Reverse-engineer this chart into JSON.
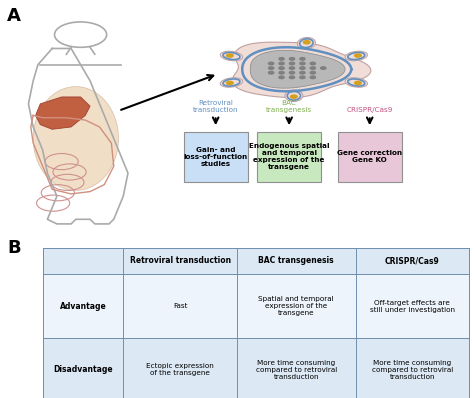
{
  "panel_a_label": "A",
  "panel_b_label": "B",
  "bg_color": "#f5f5f0",
  "table_header_bg": "#dce9f5",
  "table_row1_bg": "#eef4fb",
  "table_row2_bg": "#dce9f5",
  "table_border": "#7090b0",
  "box1_bg": "#c8dff5",
  "box2_bg": "#c8e8c0",
  "box3_bg": "#e8c8d8",
  "box1_text": "Gain- and\nloss-of-function\nstudies",
  "box2_text": "Endogenous spatial\nand temporal\nexpression of the\ntransgene",
  "box3_text": "Gene correction\nGene KO",
  "label1": "Retroviral\ntransduction",
  "label2": "BAC\ntransgenesis",
  "label3": "CRISPR/Cas9",
  "label1_color": "#6090c0",
  "label2_color": "#80b050",
  "label3_color": "#c05080",
  "col_headers": [
    "",
    "Retroviral transduction",
    "BAC transgenesis",
    "CRISPR/Cas9"
  ],
  "row_headers": [
    "Advantage",
    "Disadvantage"
  ],
  "cell_data": [
    [
      "Fast",
      "Spatial and temporal\nexpression of the\ntransgene",
      "Off-target effects are\nstill under investigation"
    ],
    [
      "Ectopic expression\nof the transgene",
      "More time consuming\ncompared to retroviral\ntransduction",
      "More time consuming\ncompared to retroviral\ntransduction"
    ]
  ]
}
